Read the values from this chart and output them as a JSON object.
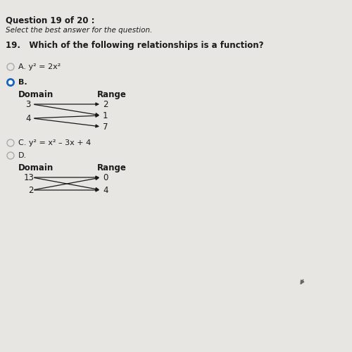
{
  "title_line1": "Question 19 of 20 :",
  "subtitle": "Select the best answer for the question.",
  "question": "19.   Which of the following relationships is a function?",
  "option_A_label": "A. y² = 2x²",
  "option_B_label": "B.",
  "option_C_label": "C. y² = x² – 3x + 4",
  "option_D_label": "D.",
  "domain_label": "Domain",
  "range_label": "Range",
  "domain_label2": "Domain",
  "range_label2": "Range",
  "B_domain": [
    "3",
    "4"
  ],
  "B_range": [
    "2",
    "1",
    "7"
  ],
  "D_domain": [
    "13",
    "2"
  ],
  "D_range": [
    "0",
    "4"
  ],
  "background_color": "#e8e6e3",
  "text_color": "#1a1a1a",
  "arrow_color": "#1a1a1a",
  "selected_dot_color": "#1565c0",
  "unselected_dot_color": "#aaaaaa",
  "title_fontsize": 8.5,
  "subtitle_fontsize": 7.5,
  "question_fontsize": 8.5,
  "option_fontsize": 8.0,
  "domain_fontsize": 8.5,
  "value_fontsize": 8.5
}
